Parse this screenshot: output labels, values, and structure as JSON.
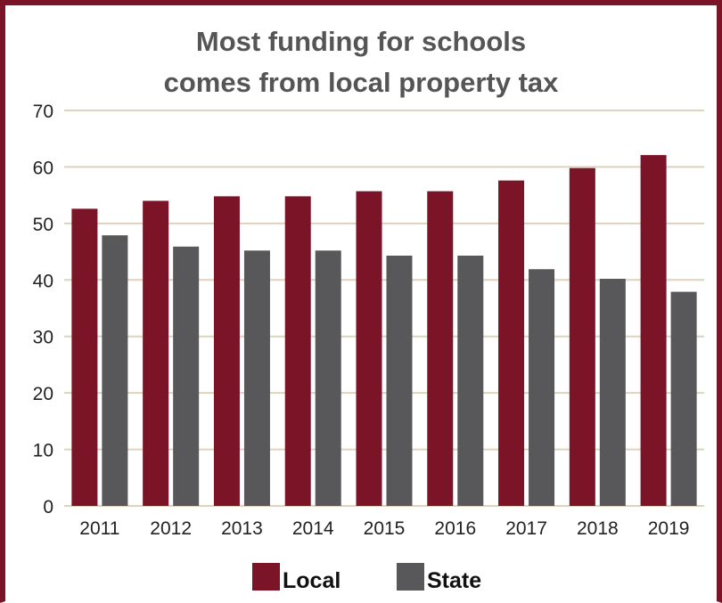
{
  "chart_data": {
    "type": "bar",
    "title_lines": [
      "Most funding for schools",
      "comes from local property tax"
    ],
    "categories": [
      "2011",
      "2012",
      "2013",
      "2014",
      "2015",
      "2016",
      "2017",
      "2018",
      "2019"
    ],
    "series": [
      {
        "name": "Local",
        "color": "#7a1426",
        "values": [
          52.6,
          54.0,
          54.8,
          54.8,
          55.7,
          55.7,
          57.6,
          59.8,
          62.1
        ]
      },
      {
        "name": "State",
        "color": "#58585a",
        "values": [
          47.9,
          45.9,
          45.2,
          45.2,
          44.3,
          44.3,
          41.9,
          40.2,
          37.9
        ]
      }
    ],
    "ylim": [
      0,
      70
    ],
    "yticks": [
      "0",
      "10",
      "20",
      "30",
      "40",
      "50",
      "60",
      "70"
    ],
    "grid": true,
    "grid_color": "#ddd2bd",
    "legend_position": "bottom-center"
  }
}
